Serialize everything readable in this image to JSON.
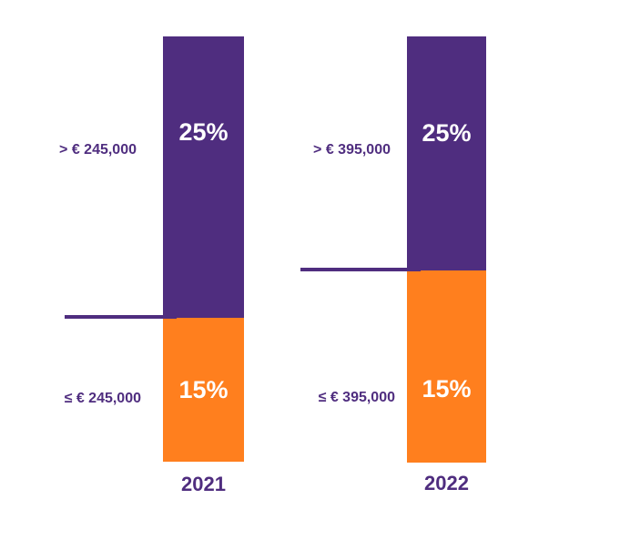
{
  "chart_data": {
    "type": "bar",
    "stacked": true,
    "categories": [
      "2021",
      "2022"
    ],
    "series": [
      {
        "name": "lower_rate",
        "values": [
          15,
          15
        ],
        "value_labels": [
          "15%",
          "15%"
        ],
        "color": "#FF7F1E"
      },
      {
        "name": "upper_rate",
        "values": [
          25,
          25
        ],
        "value_labels": [
          "25%",
          "25%"
        ],
        "color": "#4F2D7F"
      }
    ],
    "thresholds": [
      {
        "category": "2021",
        "value": 245000,
        "upper_label": "> € 245,000",
        "lower_label": "≤ € 245,000"
      },
      {
        "category": "2022",
        "value": 395000,
        "upper_label": "> € 395,000",
        "lower_label": "≤ € 395,000"
      }
    ],
    "text_color": "#4F2D7F",
    "value_label_color": "#FFFFFF",
    "title": "",
    "xlabel": "",
    "ylabel": ""
  }
}
